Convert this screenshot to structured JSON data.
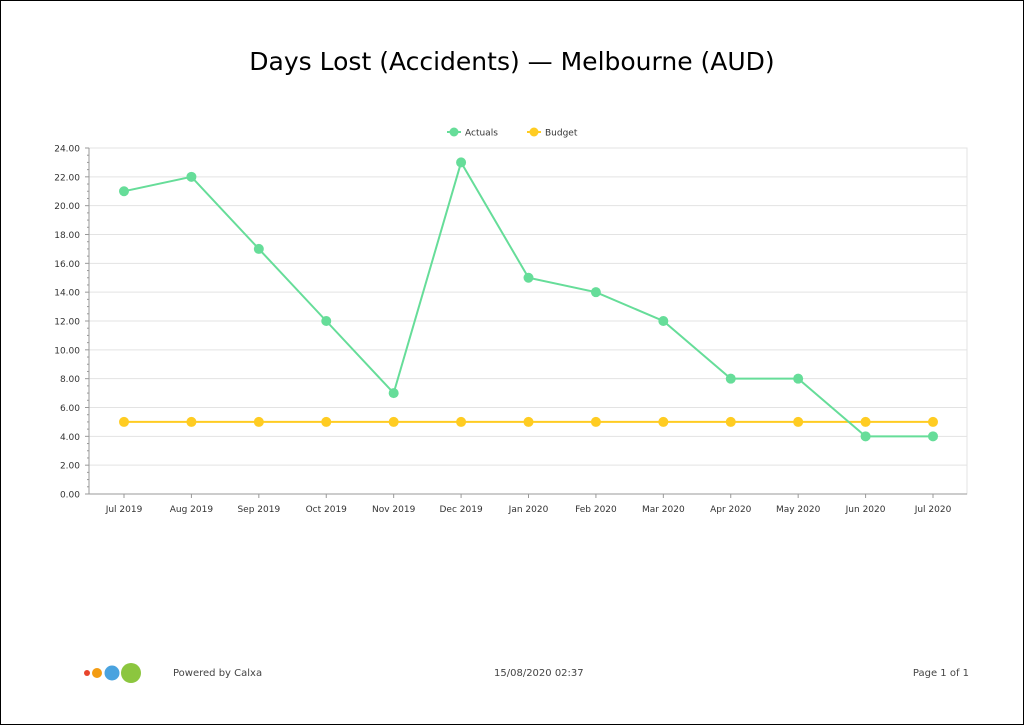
{
  "report": {
    "title": "Days Lost (Accidents) — Melbourne (AUD)",
    "powered_by": "Powered by Calxa",
    "timestamp": "15/08/2020 02:37",
    "page_label": "Page 1 of 1"
  },
  "colors": {
    "actuals": "#66dd99",
    "budget": "#ffcc22",
    "grid": "#e3e3e3",
    "axis": "#999999",
    "text": "#333333",
    "logo": [
      "#e8452c",
      "#f39c12",
      "#4aa3df",
      "#8cc63f"
    ]
  },
  "chart_data": {
    "type": "line",
    "title": "Days Lost (Accidents) — Melbourne (AUD)",
    "categories": [
      "Jul 2019",
      "Aug 2019",
      "Sep 2019",
      "Oct 2019",
      "Nov 2019",
      "Dec 2019",
      "Jan 2020",
      "Feb 2020",
      "Mar 2020",
      "Apr 2020",
      "May 2020",
      "Jun 2020",
      "Jul 2020"
    ],
    "series": [
      {
        "name": "Actuals",
        "color": "#66dd99",
        "values": [
          21,
          22,
          17,
          12,
          7,
          23,
          15,
          14,
          12,
          8,
          8,
          4,
          4
        ]
      },
      {
        "name": "Budget",
        "color": "#ffcc22",
        "values": [
          5,
          5,
          5,
          5,
          5,
          5,
          5,
          5,
          5,
          5,
          5,
          5,
          5
        ]
      }
    ],
    "yticks": [
      "0.00",
      "2.00",
      "4.00",
      "6.00",
      "8.00",
      "10.00",
      "12.00",
      "14.00",
      "16.00",
      "18.00",
      "20.00",
      "22.00",
      "24.00"
    ],
    "ylim": [
      0,
      24
    ],
    "grid": true,
    "legend_position": "top-center",
    "xlabel": "",
    "ylabel": ""
  }
}
